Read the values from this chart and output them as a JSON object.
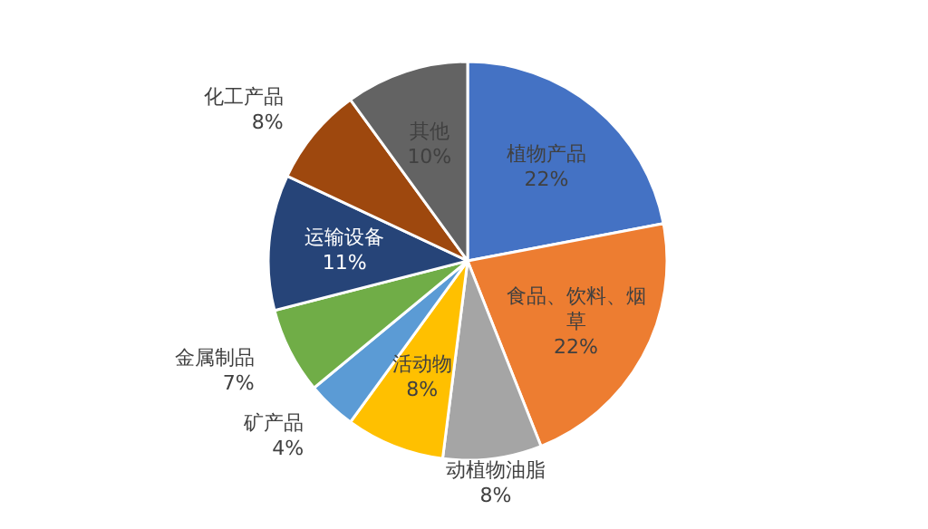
{
  "chart_data": {
    "type": "pie",
    "categories": [
      "植物产品",
      "食品、饮料、烟草",
      "动植物油脂",
      "活动物",
      "矿产品",
      "金属制品",
      "运输设备",
      "化工产品",
      "其他"
    ],
    "values": [
      22,
      22,
      8,
      8,
      4,
      7,
      11,
      8,
      10
    ],
    "value_labels": [
      "22%",
      "22%",
      "8%",
      "8%",
      "4%",
      "7%",
      "11%",
      "8%",
      "10%"
    ],
    "colors": [
      "#4472c4",
      "#ed7d31",
      "#a5a5a5",
      "#ffc000",
      "#5b9bd5",
      "#70ad47",
      "#264478",
      "#9e480e",
      "#636363"
    ]
  }
}
